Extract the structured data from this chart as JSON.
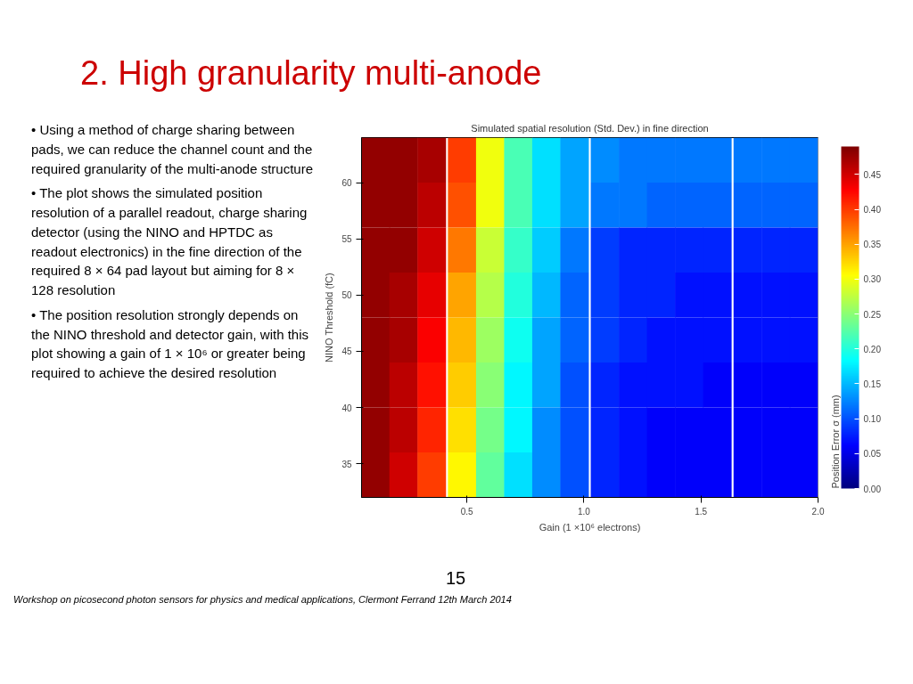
{
  "chart_data": {
    "type": "heatmap",
    "title": "2. High granularity multi-anode",
    "subtitle": "Simulated spatial resolution (Std. Dev.) in fine direction",
    "xlabel": "Gain (1 ×10⁶ electrons)",
    "ylabel": "NINO Threshold (fC)",
    "clabel": "Position Error σ (mm)",
    "x": [
      0.11,
      0.23,
      0.35,
      0.48,
      0.6,
      0.72,
      0.84,
      0.96,
      1.09,
      1.21,
      1.33,
      1.45,
      1.57,
      1.7,
      1.82,
      1.94
    ],
    "cells": [
      [
        0.48,
        0.48,
        0.47,
        0.4,
        0.3,
        0.22,
        0.17,
        0.14,
        0.13,
        0.12,
        0.12,
        0.12,
        0.12,
        0.12,
        0.12,
        0.12
      ],
      [
        0.48,
        0.48,
        0.46,
        0.39,
        0.3,
        0.22,
        0.17,
        0.14,
        0.12,
        0.12,
        0.11,
        0.11,
        0.11,
        0.11,
        0.11,
        0.11
      ],
      [
        0.48,
        0.48,
        0.45,
        0.37,
        0.28,
        0.21,
        0.16,
        0.12,
        0.09,
        0.08,
        0.08,
        0.08,
        0.08,
        0.08,
        0.08,
        0.08
      ],
      [
        0.48,
        0.47,
        0.44,
        0.35,
        0.27,
        0.2,
        0.15,
        0.11,
        0.09,
        0.08,
        0.08,
        0.07,
        0.07,
        0.07,
        0.07,
        0.07
      ],
      [
        0.48,
        0.47,
        0.43,
        0.34,
        0.26,
        0.19,
        0.14,
        0.11,
        0.09,
        0.08,
        0.07,
        0.07,
        0.07,
        0.07,
        0.07,
        0.07
      ],
      [
        0.48,
        0.46,
        0.42,
        0.33,
        0.25,
        0.18,
        0.14,
        0.1,
        0.08,
        0.07,
        0.07,
        0.07,
        0.06,
        0.06,
        0.06,
        0.06
      ],
      [
        0.48,
        0.46,
        0.41,
        0.32,
        0.24,
        0.18,
        0.13,
        0.1,
        0.08,
        0.07,
        0.06,
        0.06,
        0.06,
        0.06,
        0.06,
        0.06
      ],
      [
        0.48,
        0.45,
        0.4,
        0.31,
        0.23,
        0.17,
        0.13,
        0.1,
        0.08,
        0.07,
        0.06,
        0.06,
        0.06,
        0.06,
        0.06,
        0.06
      ]
    ],
    "xlim": [
      0.05,
      2.0
    ],
    "xticks": [
      0.5,
      {
        "value": 1.0,
        "label": "1.0"
      },
      1.5,
      {
        "value": 2.0,
        "label": "2.0"
      }
    ],
    "ylim": [
      32,
      64
    ],
    "yticks": [
      35,
      40,
      45,
      50,
      55,
      60
    ],
    "clim": [
      0,
      0.49
    ],
    "cticks": [
      {
        "value": 0,
        "label": "0.00"
      },
      0.05,
      {
        "value": 0.1,
        "label": "0.10"
      },
      0.15,
      {
        "value": 0.2,
        "label": "0.20"
      },
      0.25,
      {
        "value": 0.3,
        "label": "0.30"
      },
      0.35,
      {
        "value": 0.4,
        "label": "0.40"
      },
      0.45
    ],
    "grid": false,
    "annotations": [
      "• Using a method of charge sharing between pads, we can reduce the channel count and the required granularity of the multi-anode structure",
      "• The plot shows the simulated position resolution of a parallel readout, charge sharing detector (using the NINO and HPTDC as readout electronics) in the fine direction of the required 8 × 64 pad layout but aiming for 8 × 128 resolution",
      "• The position resolution strongly depends on the NINO threshold and detector gain, with this plot showing a gain of 1 × 10⁶ or greater being required to achieve the desired resolution",
      "15",
      "Workshop on picosecond photon sensors for physics and medical applications, Clermont Ferrand 12th March 2014"
    ]
  }
}
